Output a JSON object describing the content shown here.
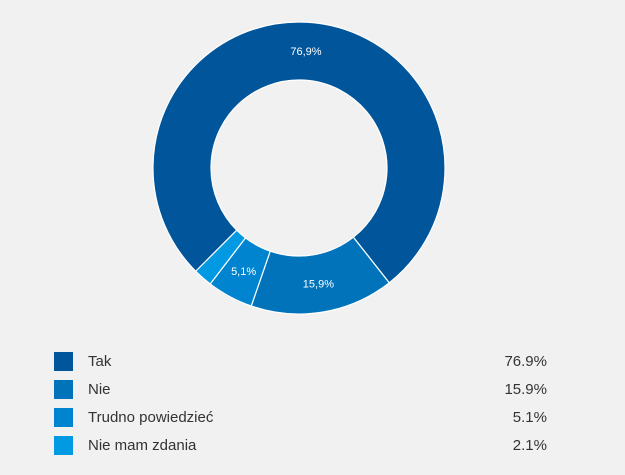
{
  "chart_data": {
    "type": "pie",
    "donut": true,
    "categories": [
      "Tak",
      "Nie",
      "Trudno powiedzieć",
      "Nie mam zdania"
    ],
    "values": [
      76.9,
      15.9,
      5.1,
      2.1
    ],
    "colors": [
      "#00559b",
      "#0073bb",
      "#0084cf",
      "#0099e2"
    ],
    "slice_labels": [
      "76,9%",
      "15,9%",
      "5,1%",
      ""
    ],
    "legend_percent_labels": [
      "76.9%",
      "15.9%",
      "5.1%",
      "2.1%"
    ],
    "legend_position": "bottom"
  },
  "legend": {
    "items": [
      {
        "label": "Tak",
        "percent": "76.9%",
        "color": "#00559b"
      },
      {
        "label": "Nie",
        "percent": "15.9%",
        "color": "#0073bb"
      },
      {
        "label": "Trudno powiedzieć",
        "percent": "5.1%",
        "color": "#0084cf"
      },
      {
        "label": "Nie mam zdania",
        "percent": "2.1%",
        "color": "#0099e2"
      }
    ]
  }
}
